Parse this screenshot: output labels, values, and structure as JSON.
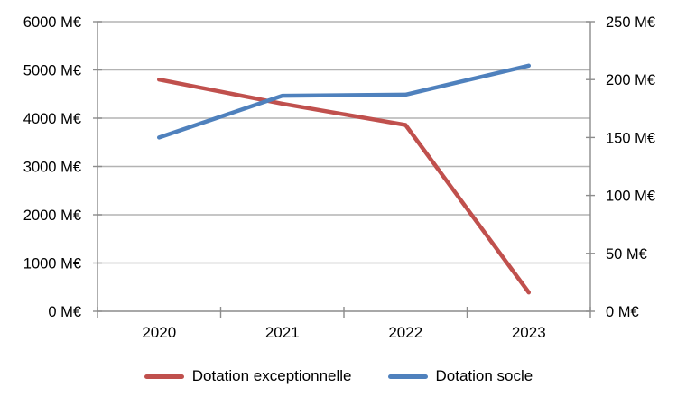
{
  "chart_data": {
    "type": "line",
    "title": "",
    "categories": [
      "2020",
      "2021",
      "2022",
      "2023"
    ],
    "series": [
      {
        "name": "Dotation exceptionnelle",
        "color": "#C0504D",
        "axis": "left",
        "values": [
          4800,
          4300,
          3860,
          390
        ]
      },
      {
        "name": "Dotation socle",
        "color": "#4F81BD",
        "axis": "right",
        "values": [
          150,
          186,
          187,
          212
        ]
      }
    ],
    "left_axis": {
      "min": 0,
      "max": 6000,
      "step": 1000,
      "unit": "M€",
      "tick_labels": [
        "0 M€",
        "1000 M€",
        "2000 M€",
        "3000 M€",
        "4000 M€",
        "5000 M€",
        "6000 M€"
      ]
    },
    "right_axis": {
      "min": 0,
      "max": 250,
      "step": 50,
      "unit": "M€",
      "tick_labels": [
        "0 M€",
        "50 M€",
        "100 M€",
        "150 M€",
        "200 M€",
        "250 M€"
      ]
    },
    "grid": true,
    "legend_position": "bottom"
  },
  "colors": {
    "background": "#FFFFFF",
    "gridline": "#B3B3B3",
    "axis": "#8C8C8C",
    "text": "#000000"
  }
}
